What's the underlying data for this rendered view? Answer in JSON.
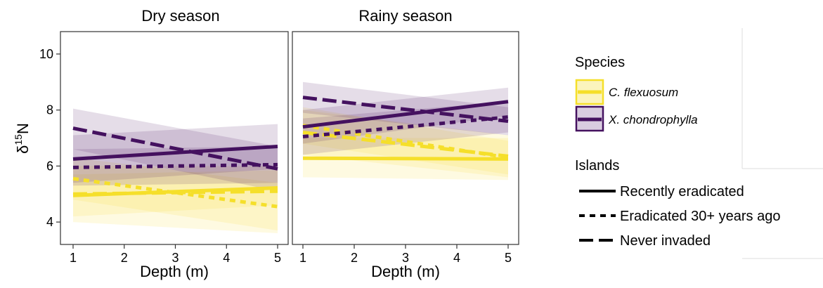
{
  "chart_data": {
    "type": "line",
    "ylabel_base": "δ",
    "ylabel_sup": "15",
    "ylabel_tail": "N",
    "xlabel": "Depth (m)",
    "xlim": [
      1,
      5
    ],
    "ylim": [
      3.2,
      10.8
    ],
    "x_ticks": [
      1,
      2,
      3,
      4,
      5
    ],
    "y_ticks": [
      4,
      6,
      8,
      10
    ],
    "grid": false,
    "legend_position": "right",
    "colors": {
      "C. flexuosum": "#f5df2a",
      "X. chondrophylla": "#44115f"
    },
    "legend": {
      "species_title": "Species",
      "species": [
        {
          "name": "C. flexuosum",
          "color": "#f5df2a"
        },
        {
          "name": "X. chondrophylla",
          "color": "#44115f"
        }
      ],
      "islands_title": "Islands",
      "islands": [
        {
          "name": "Recently eradicated",
          "dash": "solid"
        },
        {
          "name": "Eradicated 30+ years ago",
          "dash": "dotted"
        },
        {
          "name": "Never invaded",
          "dash": "dashed"
        }
      ]
    },
    "panels": [
      {
        "title": "Dry season",
        "series": [
          {
            "species": "C. flexuosum",
            "island": "Recently eradicated",
            "x": [
              1,
              5
            ],
            "y": [
              4.95,
              5.22
            ],
            "lower": [
              4.2,
              4.6
            ],
            "upper": [
              5.7,
              5.85
            ]
          },
          {
            "species": "C. flexuosum",
            "island": "Eradicated 30+ years ago",
            "x": [
              1,
              5
            ],
            "y": [
              5.55,
              4.55
            ],
            "lower": [
              4.8,
              3.7
            ],
            "upper": [
              6.3,
              5.4
            ]
          },
          {
            "species": "C. flexuosum",
            "island": "Never invaded",
            "x": [
              1,
              5
            ],
            "y": [
              5.0,
              5.1
            ],
            "lower": [
              4.0,
              3.6
            ],
            "upper": [
              6.0,
              6.0
            ]
          },
          {
            "species": "X. chondrophylla",
            "island": "Recently eradicated",
            "x": [
              1,
              5
            ],
            "y": [
              6.25,
              6.7
            ],
            "lower": [
              5.4,
              5.9
            ],
            "upper": [
              7.1,
              7.5
            ]
          },
          {
            "species": "X. chondrophylla",
            "island": "Eradicated 30+ years ago",
            "x": [
              1,
              5
            ],
            "y": [
              5.95,
              6.05
            ],
            "lower": [
              5.3,
              5.4
            ],
            "upper": [
              6.6,
              6.7
            ]
          },
          {
            "species": "X. chondrophylla",
            "island": "Never invaded",
            "x": [
              1,
              5
            ],
            "y": [
              7.35,
              5.9
            ],
            "lower": [
              6.6,
              5.1
            ],
            "upper": [
              8.05,
              6.7
            ]
          }
        ]
      },
      {
        "title": "Rainy season",
        "series": [
          {
            "species": "C. flexuosum",
            "island": "Recently eradicated",
            "x": [
              1,
              5
            ],
            "y": [
              6.28,
              6.25
            ],
            "lower": [
              5.6,
              5.5
            ],
            "upper": [
              7.0,
              7.0
            ]
          },
          {
            "species": "C. flexuosum",
            "island": "Eradicated 30+ years ago",
            "x": [
              1,
              5
            ],
            "y": [
              7.45,
              6.3
            ],
            "lower": [
              6.8,
              5.7
            ],
            "upper": [
              8.1,
              6.9
            ]
          },
          {
            "species": "C. flexuosum",
            "island": "Never invaded",
            "x": [
              1,
              5
            ],
            "y": [
              7.2,
              6.35
            ],
            "lower": [
              6.4,
              5.6
            ],
            "upper": [
              8.0,
              7.1
            ]
          },
          {
            "species": "X. chondrophylla",
            "island": "Recently eradicated",
            "x": [
              1,
              5
            ],
            "y": [
              7.4,
              8.3
            ],
            "lower": [
              6.8,
              7.8
            ],
            "upper": [
              8.0,
              8.8
            ]
          },
          {
            "species": "X. chondrophylla",
            "island": "Eradicated 30+ years ago",
            "x": [
              1,
              5
            ],
            "y": [
              7.05,
              7.75
            ],
            "lower": [
              6.4,
              7.2
            ],
            "upper": [
              7.7,
              8.3
            ]
          },
          {
            "species": "X. chondrophylla",
            "island": "Never invaded",
            "x": [
              1,
              5
            ],
            "y": [
              8.45,
              7.6
            ],
            "lower": [
              7.9,
              7.1
            ],
            "upper": [
              9.0,
              8.1
            ]
          }
        ]
      }
    ]
  }
}
